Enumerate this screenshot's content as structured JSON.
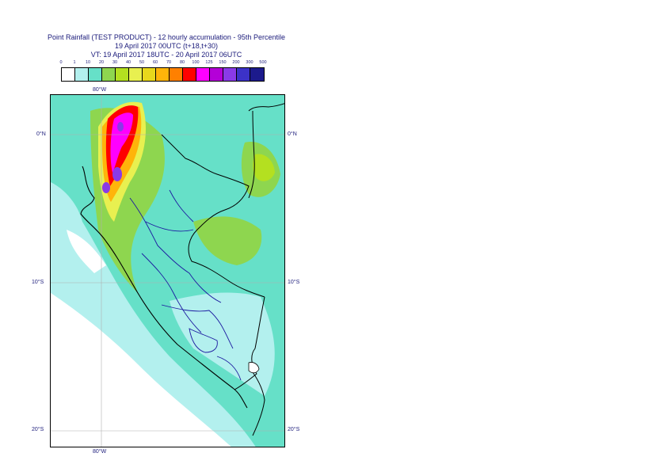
{
  "title": {
    "line1": "Point Rainfall (TEST PRODUCT) - 12 hourly accumulation - 95th Percentile",
    "line2": "19 April 2017 00UTC (t+18,t+30)",
    "line3": "VT: 19 April 2017 18UTC - 20 April 2017 06UTC"
  },
  "legend": {
    "levels": [
      "0",
      "1",
      "10",
      "20",
      "30",
      "40",
      "50",
      "60",
      "70",
      "80",
      "100",
      "125",
      "150",
      "200",
      "300",
      "500"
    ],
    "colors": [
      "#ffffff",
      "#b3f0ee",
      "#66e0c8",
      "#8ed64f",
      "#b4e020",
      "#e8f050",
      "#e8d81c",
      "#ffb40a",
      "#ff8000",
      "#ff0000",
      "#ff00ff",
      "#b400d8",
      "#8a3ae8",
      "#3c32c8",
      "#1c1a8c"
    ]
  },
  "axes": {
    "lon_top": "80°W",
    "lon_bottom": "80°W",
    "lat_left": [
      "0°N",
      "10°S",
      "20°S"
    ],
    "lat_right": [
      "0°N",
      "10°S",
      "20°S"
    ]
  }
}
